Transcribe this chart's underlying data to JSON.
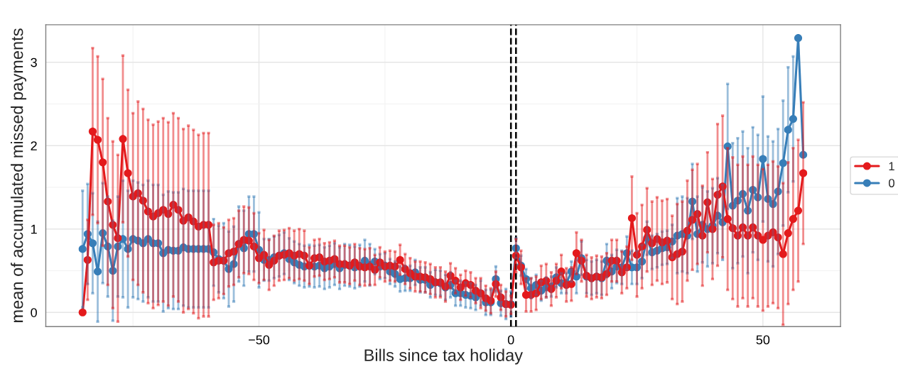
{
  "chart_data": {
    "type": "line",
    "xlabel": "Bills since tax holiday",
    "ylabel": "mean of accumulated missed payments",
    "x": [
      -85,
      -84,
      -83,
      -82,
      -81,
      -80,
      -79,
      -78,
      -77,
      -76,
      -75,
      -74,
      -73,
      -72,
      -71,
      -70,
      -69,
      -68,
      -67,
      -66,
      -65,
      -64,
      -63,
      -62,
      -61,
      -60,
      -59,
      -58,
      -57,
      -56,
      -55,
      -54,
      -53,
      -52,
      -51,
      -50,
      -49,
      -48,
      -47,
      -46,
      -45,
      -44,
      -43,
      -42,
      -41,
      -40,
      -39,
      -38,
      -37,
      -36,
      -35,
      -34,
      -33,
      -32,
      -31,
      -30,
      -29,
      -28,
      -27,
      -26,
      -25,
      -24,
      -23,
      -22,
      -21,
      -20,
      -19,
      -18,
      -17,
      -16,
      -15,
      -14,
      -13,
      -12,
      -11,
      -10,
      -9,
      -8,
      -7,
      -6,
      -5,
      -4,
      -3,
      -2,
      -1,
      0,
      1,
      2,
      3,
      4,
      5,
      6,
      7,
      8,
      9,
      10,
      11,
      12,
      13,
      14,
      15,
      16,
      17,
      18,
      19,
      20,
      21,
      22,
      23,
      24,
      25,
      26,
      27,
      28,
      29,
      30,
      31,
      32,
      33,
      34,
      35,
      36,
      37,
      38,
      39,
      40,
      41,
      42,
      43,
      44,
      45,
      46,
      47,
      48,
      49,
      50,
      51,
      52,
      53,
      54,
      55,
      56,
      57,
      58
    ],
    "series": [
      {
        "name": "1",
        "color": "#e41a1c",
        "values": [
          0.0,
          0.63,
          2.17,
          2.07,
          1.8,
          1.33,
          1.05,
          0.89,
          2.08,
          1.67,
          1.39,
          1.43,
          1.34,
          1.21,
          1.15,
          1.19,
          1.23,
          1.18,
          1.29,
          1.23,
          1.1,
          1.14,
          1.09,
          1.03,
          1.05,
          1.05,
          0.6,
          0.62,
          0.62,
          0.71,
          0.73,
          0.82,
          0.87,
          0.86,
          0.79,
          0.65,
          0.69,
          0.57,
          0.62,
          0.68,
          0.69,
          0.71,
          0.68,
          0.7,
          0.68,
          0.56,
          0.65,
          0.66,
          0.61,
          0.62,
          0.64,
          0.58,
          0.58,
          0.56,
          0.6,
          0.55,
          0.54,
          0.55,
          0.51,
          0.6,
          0.55,
          0.56,
          0.55,
          0.63,
          0.52,
          0.47,
          0.43,
          0.43,
          0.42,
          0.4,
          0.36,
          0.36,
          0.31,
          0.44,
          0.38,
          0.3,
          0.35,
          0.33,
          0.26,
          0.23,
          0.17,
          0.14,
          0.34,
          0.18,
          0.1,
          0.09,
          0.68,
          0.54,
          0.21,
          0.21,
          0.23,
          0.36,
          0.38,
          0.28,
          0.38,
          0.49,
          0.33,
          0.34,
          0.71,
          0.62,
          0.44,
          0.41,
          0.43,
          0.42,
          0.46,
          0.62,
          0.62,
          0.48,
          0.54,
          1.13,
          0.69,
          0.79,
          0.99,
          0.83,
          0.88,
          0.84,
          0.86,
          0.66,
          0.7,
          0.73,
          0.98,
          1.11,
          1.18,
          0.92,
          1.32,
          1.0,
          1.41,
          1.51,
          1.12,
          1.01,
          0.92,
          1.02,
          0.92,
          1.02,
          0.92,
          0.87,
          0.92,
          0.96,
          0.9,
          0.7,
          0.95,
          1.12,
          1.22,
          1.67
        ],
        "errors": [
          null,
          0.48,
          1.0,
          1.0,
          1.0,
          1.0,
          1.0,
          1.0,
          1.0,
          1.0,
          1.0,
          1.1,
          1.1,
          1.1,
          1.1,
          1.1,
          1.1,
          1.1,
          1.1,
          1.1,
          1.1,
          1.1,
          1.1,
          1.1,
          1.1,
          1.1,
          0.45,
          0.45,
          0.4,
          0.4,
          0.4,
          0.4,
          0.4,
          0.4,
          0.4,
          0.3,
          0.3,
          0.3,
          0.3,
          0.3,
          0.3,
          0.3,
          0.3,
          0.3,
          0.3,
          0.22,
          0.22,
          0.22,
          0.22,
          0.22,
          0.22,
          0.22,
          0.22,
          0.22,
          0.22,
          0.22,
          0.22,
          0.22,
          0.18,
          0.18,
          0.18,
          0.18,
          0.18,
          0.18,
          0.18,
          0.18,
          0.18,
          0.18,
          0.18,
          0.18,
          0.18,
          0.18,
          0.18,
          0.15,
          0.15,
          0.15,
          0.15,
          0.15,
          0.15,
          0.18,
          0.15,
          0.15,
          0.15,
          0.15,
          0.15,
          0.11,
          0.2,
          0.2,
          0.2,
          0.2,
          0.2,
          0.2,
          0.2,
          0.2,
          0.2,
          0.2,
          0.2,
          0.2,
          0.25,
          0.25,
          0.25,
          0.25,
          0.25,
          0.25,
          0.25,
          0.25,
          0.25,
          0.25,
          0.25,
          0.5,
          0.5,
          0.5,
          0.5,
          0.5,
          0.5,
          0.5,
          0.5,
          0.5,
          0.6,
          0.6,
          0.6,
          0.6,
          0.6,
          0.6,
          0.6,
          0.6,
          0.85,
          0.85,
          0.85,
          0.85,
          0.85,
          0.85,
          0.85,
          0.85,
          0.85,
          0.85,
          0.85,
          0.85,
          0.85,
          0.85,
          0.85,
          0.85,
          0.85,
          0.85
        ]
      },
      {
        "name": "0",
        "color": "#377eb8",
        "values": [
          0.76,
          0.94,
          0.83,
          0.49,
          0.95,
          0.79,
          0.5,
          0.79,
          0.88,
          0.76,
          0.88,
          0.86,
          0.83,
          0.88,
          0.83,
          0.83,
          0.71,
          0.75,
          0.74,
          0.74,
          0.78,
          0.76,
          0.76,
          0.76,
          0.76,
          0.76,
          0.72,
          0.64,
          0.62,
          0.52,
          0.58,
          0.82,
          0.77,
          0.94,
          0.94,
          0.75,
          0.63,
          0.63,
          0.66,
          0.68,
          0.71,
          0.64,
          0.6,
          0.57,
          0.55,
          0.56,
          0.55,
          0.56,
          0.53,
          0.55,
          0.58,
          0.53,
          0.57,
          0.56,
          0.54,
          0.56,
          0.62,
          0.57,
          0.61,
          0.55,
          0.56,
          0.49,
          0.46,
          0.4,
          0.41,
          0.41,
          0.48,
          0.39,
          0.39,
          0.33,
          0.36,
          0.35,
          0.3,
          0.33,
          0.23,
          0.23,
          0.21,
          0.2,
          0.18,
          0.23,
          0.12,
          0.12,
          0.4,
          0.11,
          0.1,
          0.1,
          0.77,
          0.56,
          0.4,
          0.29,
          0.33,
          0.26,
          0.3,
          0.31,
          0.42,
          0.35,
          0.35,
          0.49,
          0.43,
          0.65,
          0.43,
          0.41,
          0.43,
          0.41,
          0.62,
          0.49,
          0.55,
          0.54,
          0.71,
          0.54,
          0.54,
          0.61,
          0.89,
          0.72,
          0.74,
          0.77,
          0.78,
          0.85,
          0.92,
          0.94,
          0.92,
          1.33,
          0.94,
          1.05,
          1.0,
          1.04,
          1.16,
          1.08,
          1.99,
          1.28,
          1.34,
          1.42,
          1.22,
          1.47,
          1.38,
          1.84,
          1.36,
          1.3,
          1.45,
          1.79,
          2.19,
          2.32,
          3.29,
          1.89
        ],
        "errors": [
          0.7,
          0.6,
          0.6,
          0.6,
          0.6,
          0.6,
          0.6,
          0.6,
          0.7,
          0.7,
          0.7,
          0.7,
          0.7,
          0.7,
          0.7,
          0.7,
          0.7,
          0.7,
          0.7,
          0.7,
          0.7,
          0.7,
          0.7,
          0.7,
          0.7,
          0.7,
          0.4,
          0.4,
          0.45,
          0.45,
          0.45,
          0.45,
          0.45,
          0.45,
          0.45,
          0.45,
          0.25,
          0.25,
          0.25,
          0.25,
          0.25,
          0.25,
          0.25,
          0.25,
          0.25,
          0.25,
          0.25,
          0.25,
          0.25,
          0.25,
          0.25,
          0.25,
          0.25,
          0.25,
          0.25,
          0.25,
          0.25,
          0.25,
          0.15,
          0.15,
          0.15,
          0.15,
          0.15,
          0.15,
          0.15,
          0.15,
          0.15,
          0.15,
          0.15,
          0.15,
          0.15,
          0.15,
          0.15,
          0.15,
          0.15,
          0.15,
          0.15,
          0.15,
          0.15,
          0.15,
          0.15,
          0.15,
          0.15,
          0.15,
          0.18,
          0.15,
          0.12,
          0.12,
          0.12,
          0.12,
          0.12,
          0.12,
          0.12,
          0.12,
          0.12,
          0.12,
          0.12,
          0.12,
          0.2,
          0.2,
          0.2,
          0.2,
          0.2,
          0.2,
          0.2,
          0.2,
          0.2,
          0.2,
          0.2,
          0.2,
          0.2,
          0.2,
          0.2,
          0.2,
          0.2,
          0.2,
          0.2,
          0.2,
          0.45,
          0.45,
          0.45,
          0.45,
          0.45,
          0.45,
          0.45,
          0.45,
          0.45,
          0.45,
          0.75,
          0.75,
          0.75,
          0.75,
          0.75,
          0.75,
          0.75,
          0.75,
          0.75,
          0.75,
          0.75,
          0.75,
          0.75,
          0.75,
          null,
          null
        ]
      }
    ],
    "ref_lines": [
      {
        "axis": "x",
        "value": 0,
        "color": "#000000",
        "line_style": "dashed"
      },
      {
        "axis": "x",
        "value": 1,
        "color": "#000000",
        "line_style": "dashed"
      }
    ],
    "xlim": [
      -92.3,
      65.4
    ],
    "ylim": [
      -0.17,
      3.45
    ],
    "xticks": [
      {
        "value": -50,
        "label": "−50"
      },
      0,
      50
    ],
    "yticks": [
      0,
      1,
      2,
      3
    ],
    "grid": true,
    "legend": "right",
    "marker": "circle",
    "line_style": "solid"
  }
}
